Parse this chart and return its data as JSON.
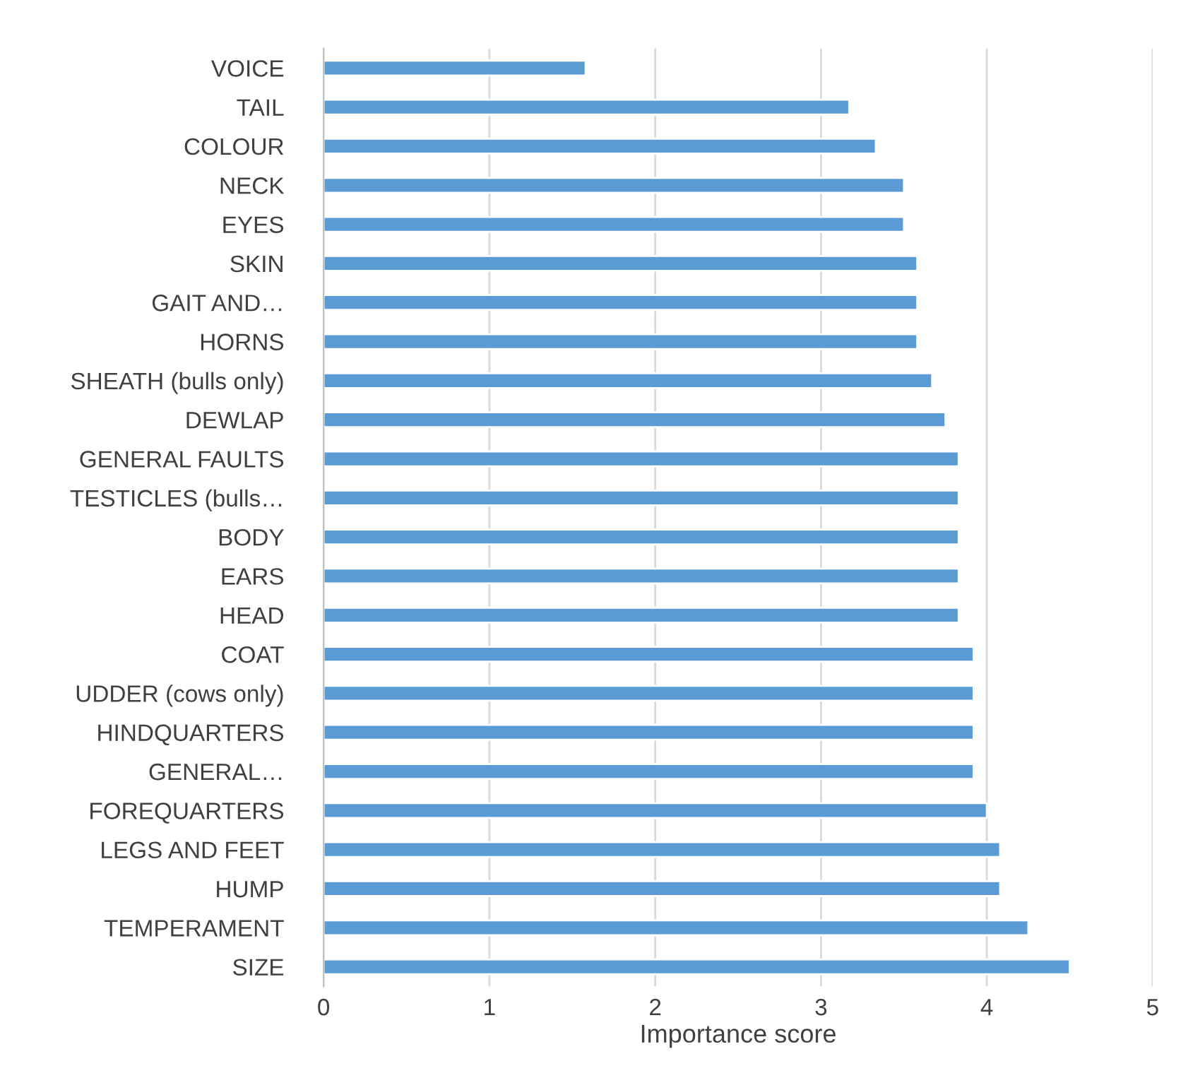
{
  "chart_data": {
    "type": "bar",
    "orientation": "horizontal",
    "xlabel": "Importance score",
    "categories": [
      "VOICE",
      "TAIL",
      "COLOUR",
      "NECK",
      "EYES",
      "SKIN",
      "GAIT AND…",
      "HORNS",
      "SHEATH (bulls only)",
      "DEWLAP",
      "GENERAL FAULTS",
      "TESTICLES (bulls…",
      "BODY",
      "EARS",
      "HEAD",
      "COAT",
      "UDDER (cows only)",
      "HINDQUARTERS",
      "GENERAL…",
      "FOREQUARTERS",
      "LEGS AND FEET",
      "HUMP",
      "TEMPERAMENT",
      "SIZE"
    ],
    "values": [
      1.58,
      3.17,
      3.33,
      3.5,
      3.5,
      3.58,
      3.58,
      3.58,
      3.67,
      3.75,
      3.83,
      3.83,
      3.83,
      3.83,
      3.83,
      3.92,
      3.92,
      3.92,
      3.92,
      4.0,
      4.08,
      4.08,
      4.25,
      4.5
    ],
    "color": "#5b9bd5",
    "xlim": [
      0,
      5
    ],
    "xticks": [
      0,
      1,
      2,
      3,
      4,
      5
    ],
    "grid": "x",
    "legend": false
  }
}
